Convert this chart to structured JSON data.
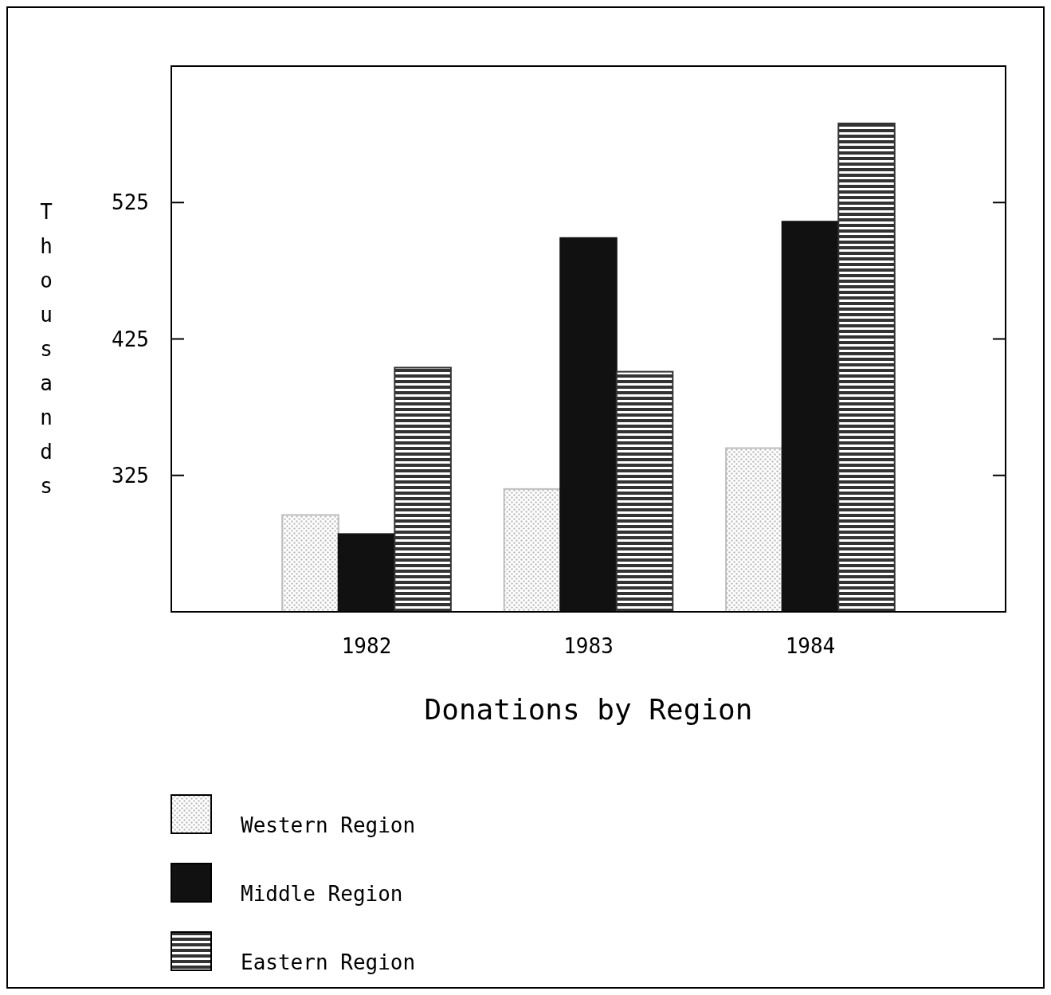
{
  "chart_data": {
    "type": "bar",
    "title": "Donations by Region",
    "ylabel": "Thousands",
    "categories": [
      "1982",
      "1983",
      "1984"
    ],
    "series": [
      {
        "name": "Western Region",
        "color": "#bdbdbd",
        "values": [
          296,
          315,
          345
        ]
      },
      {
        "name": "Middle Region",
        "color": "#111111",
        "values": [
          282,
          499,
          511
        ]
      },
      {
        "name": "Eastern Region",
        "color": "#333333",
        "values": [
          404,
          401,
          583
        ]
      }
    ],
    "ylim": [
      225,
      625
    ],
    "yticks": [
      325,
      425,
      525
    ],
    "grid": false,
    "legend": "bottom left"
  }
}
